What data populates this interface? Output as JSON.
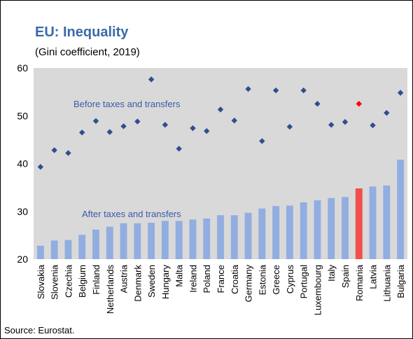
{
  "chart_data": {
    "type": "combo",
    "title": "EU: Inequality",
    "subtitle": "(Gini coefficient, 2019)",
    "source": "Source: Eurostat.",
    "annotations": [
      {
        "text": "Before taxes and transfers"
      },
      {
        "text": "After taxes and transfers"
      }
    ],
    "categories": [
      "Slovakia",
      "Slovenia",
      "Czechia",
      "Belgium",
      "Finland",
      "Netherlands",
      "Austria",
      "Denmark",
      "Sweden",
      "Hungary",
      "Malta",
      "Ireland",
      "Poland",
      "France",
      "Croatia",
      "Germany",
      "Estonia",
      "Greece",
      "Cyprus",
      "Portugal",
      "Luxembourg",
      "Italy",
      "Spain",
      "Romania",
      "Latvia",
      "Lithuania",
      "Bulgaria"
    ],
    "series": [
      {
        "type": "bar",
        "colors": [
          "#92aee0",
          "#92aee0",
          "#92aee0",
          "#92aee0",
          "#92aee0",
          "#92aee0",
          "#92aee0",
          "#92aee0",
          "#92aee0",
          "#92aee0",
          "#92aee0",
          "#92aee0",
          "#92aee0",
          "#92aee0",
          "#92aee0",
          "#92aee0",
          "#92aee0",
          "#92aee0",
          "#92aee0",
          "#92aee0",
          "#92aee0",
          "#92aee0",
          "#92aee0",
          "#f24e4e",
          "#92aee0",
          "#92aee0",
          "#92aee0"
        ],
        "values": [
          22.8,
          23.9,
          24.0,
          25.1,
          26.2,
          26.8,
          27.5,
          27.5,
          27.6,
          28.0,
          28.0,
          28.3,
          28.5,
          29.2,
          29.2,
          29.7,
          30.6,
          31.1,
          31.2,
          31.9,
          32.3,
          32.8,
          33.0,
          34.8,
          35.2,
          35.4,
          40.8
        ]
      },
      {
        "type": "scatter",
        "colors": [
          "#2e4f8f",
          "#2e4f8f",
          "#2e4f8f",
          "#2e4f8f",
          "#2e4f8f",
          "#2e4f8f",
          "#2e4f8f",
          "#2e4f8f",
          "#2e4f8f",
          "#2e4f8f",
          "#2e4f8f",
          "#2e4f8f",
          "#2e4f8f",
          "#2e4f8f",
          "#2e4f8f",
          "#2e4f8f",
          "#2e4f8f",
          "#2e4f8f",
          "#2e4f8f",
          "#2e4f8f",
          "#2e4f8f",
          "#2e4f8f",
          "#2e4f8f",
          "#ff0000",
          "#2e4f8f",
          "#2e4f8f",
          "#2e4f8f"
        ],
        "values": [
          39.3,
          42.8,
          42.2,
          46.5,
          48.9,
          46.6,
          47.8,
          48.8,
          57.6,
          48.1,
          43.1,
          47.4,
          46.8,
          51.3,
          49.0,
          55.6,
          44.7,
          55.3,
          47.7,
          55.3,
          52.5,
          48.1,
          48.7,
          52.5,
          48.0,
          50.6,
          54.8
        ]
      }
    ],
    "ylim": [
      20,
      60
    ],
    "yticks": [
      20,
      30,
      40,
      50,
      60
    ],
    "grid": false,
    "plot_background": "#d9d9d9"
  }
}
